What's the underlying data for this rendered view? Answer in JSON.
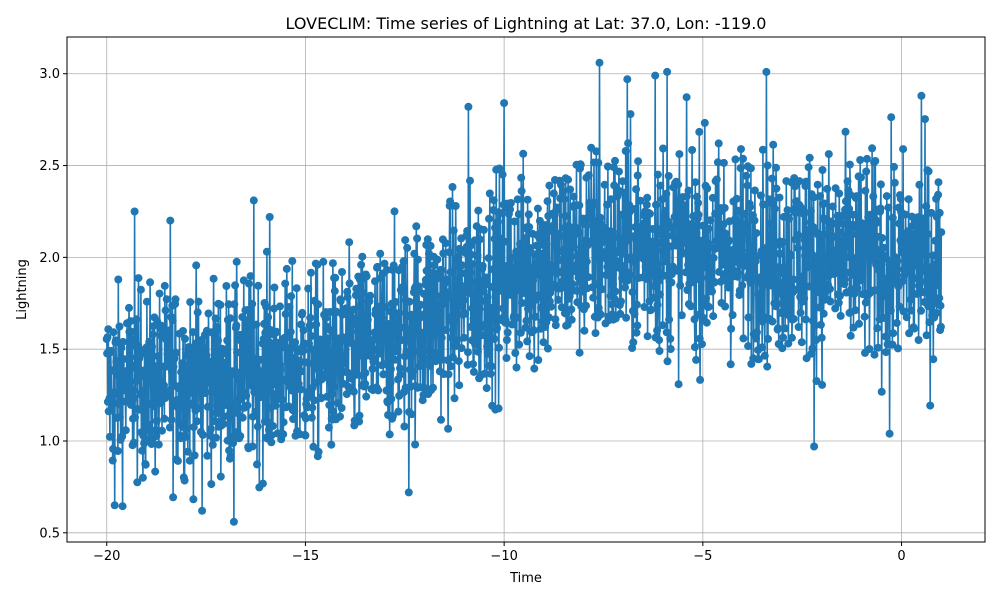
{
  "chart_data": {
    "type": "line",
    "title": "LOVECLIM: Time series of Lightning at Lat: 37.0, Lon: -119.0",
    "xlabel": "Time",
    "ylabel": "Lightning",
    "xlim": [
      -21.0,
      2.1
    ],
    "ylim": [
      0.45,
      3.2
    ],
    "xticks": [
      -20,
      -15,
      -10,
      -5,
      0
    ],
    "xtick_labels": [
      "−20",
      "−15",
      "−10",
      "−5",
      "0"
    ],
    "yticks": [
      0.5,
      1.0,
      1.5,
      2.0,
      2.5,
      3.0
    ],
    "ytick_labels": [
      "0.5",
      "1.0",
      "1.5",
      "2.0",
      "2.5",
      "3.0"
    ],
    "grid": true,
    "marker": "circle",
    "color": "#1f77b4",
    "x_start": -20.0,
    "x_end": 1.0,
    "n_points": 2101,
    "trend": [
      {
        "x": -20,
        "mean": 1.3,
        "spread": 0.25
      },
      {
        "x": -17,
        "mean": 1.35,
        "spread": 0.25
      },
      {
        "x": -14,
        "mean": 1.45,
        "spread": 0.25
      },
      {
        "x": -12,
        "mean": 1.65,
        "spread": 0.28
      },
      {
        "x": -10,
        "mean": 1.9,
        "spread": 0.28
      },
      {
        "x": -8,
        "mean": 2.05,
        "spread": 0.28
      },
      {
        "x": -5,
        "mean": 2.05,
        "spread": 0.28
      },
      {
        "x": -2,
        "mean": 2.0,
        "spread": 0.28
      },
      {
        "x": 1,
        "mean": 1.95,
        "spread": 0.28
      }
    ],
    "notable_points": [
      {
        "x": -19.8,
        "y": 0.65
      },
      {
        "x": -19.3,
        "y": 2.25
      },
      {
        "x": -18.4,
        "y": 2.2
      },
      {
        "x": -17.6,
        "y": 0.62
      },
      {
        "x": -16.8,
        "y": 0.56
      },
      {
        "x": -16.3,
        "y": 2.31
      },
      {
        "x": -15.9,
        "y": 2.22
      },
      {
        "x": -12.4,
        "y": 0.72
      },
      {
        "x": -10.9,
        "y": 2.82
      },
      {
        "x": -10.0,
        "y": 2.84
      },
      {
        "x": -7.6,
        "y": 3.06
      },
      {
        "x": -6.9,
        "y": 2.97
      },
      {
        "x": -6.2,
        "y": 2.99
      },
      {
        "x": -5.9,
        "y": 3.01
      },
      {
        "x": -3.4,
        "y": 3.01
      },
      {
        "x": -2.2,
        "y": 0.97
      },
      {
        "x": -0.3,
        "y": 2.99
      },
      {
        "x": -0.3,
        "y": 1.04
      },
      {
        "x": 0.5,
        "y": 2.88
      }
    ]
  }
}
